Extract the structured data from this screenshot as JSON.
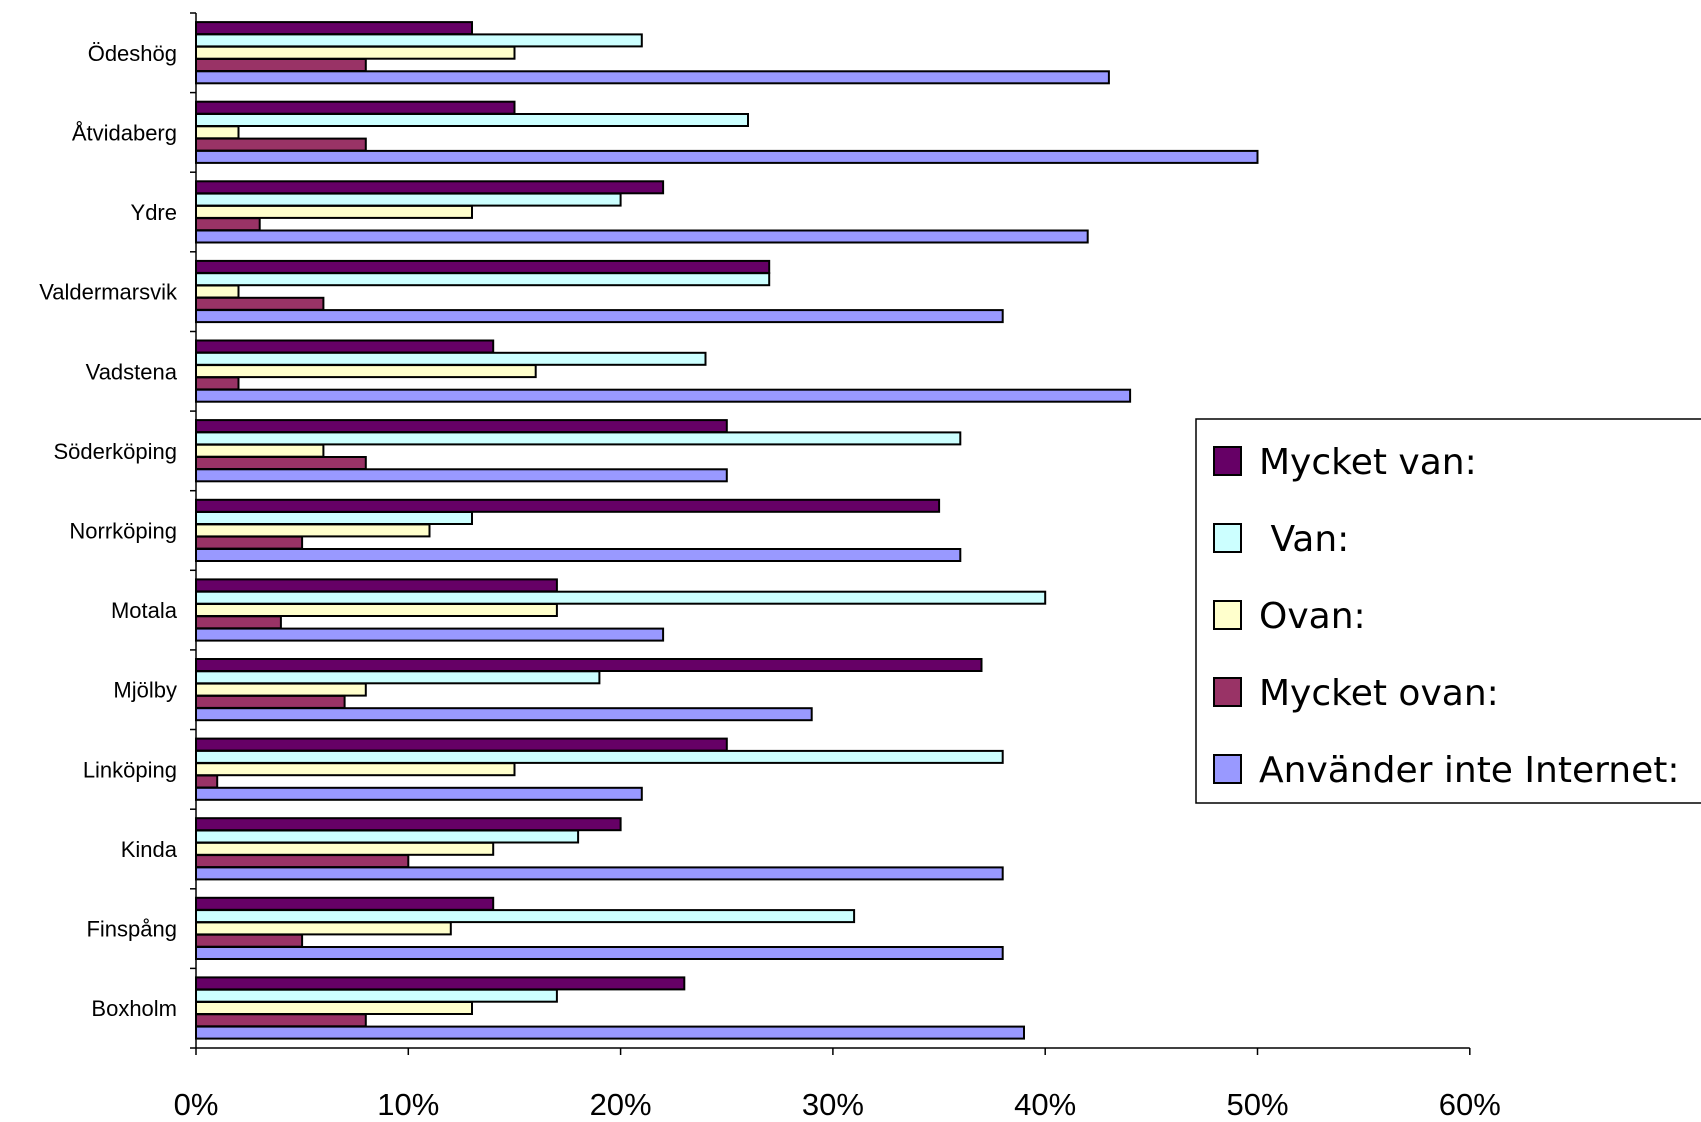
{
  "chart_data": {
    "type": "bar",
    "orientation": "horizontal",
    "title": "",
    "xlabel": "",
    "ylabel": "",
    "xlim": [
      0,
      60
    ],
    "x_tick_labels": [
      "0%",
      "10%",
      "20%",
      "30%",
      "40%",
      "50%",
      "60%"
    ],
    "grid": false,
    "legend_position": "right",
    "categories": [
      "Ödeshög",
      "Åtvidaberg",
      "Ydre",
      "Valdermarsvik",
      "Vadstena",
      "Söderköping",
      "Norrköping",
      "Motala",
      "Mjölby",
      "Linköping",
      "Kinda",
      "Finspång",
      "Boxholm"
    ],
    "series": [
      {
        "name": "Mycket van:",
        "color": "#660066",
        "values": [
          13,
          15,
          22,
          27,
          14,
          25,
          35,
          17,
          37,
          25,
          20,
          14,
          23
        ]
      },
      {
        "name": " Van:",
        "color": "#CCFFFF",
        "values": [
          21,
          26,
          20,
          27,
          24,
          36,
          13,
          40,
          19,
          38,
          18,
          31,
          17
        ]
      },
      {
        "name": "Ovan:",
        "color": "#FFFFCC",
        "values": [
          15,
          2,
          13,
          2,
          16,
          6,
          11,
          17,
          8,
          15,
          14,
          12,
          13
        ]
      },
      {
        "name": "Mycket ovan:",
        "color": "#993366",
        "values": [
          8,
          8,
          3,
          6,
          2,
          8,
          5,
          4,
          7,
          1,
          10,
          5,
          8
        ]
      },
      {
        "name": "Använder inte Internet:",
        "color": "#9999FF",
        "values": [
          43,
          50,
          42,
          38,
          44,
          25,
          36,
          22,
          29,
          21,
          38,
          38,
          39
        ]
      }
    ]
  }
}
